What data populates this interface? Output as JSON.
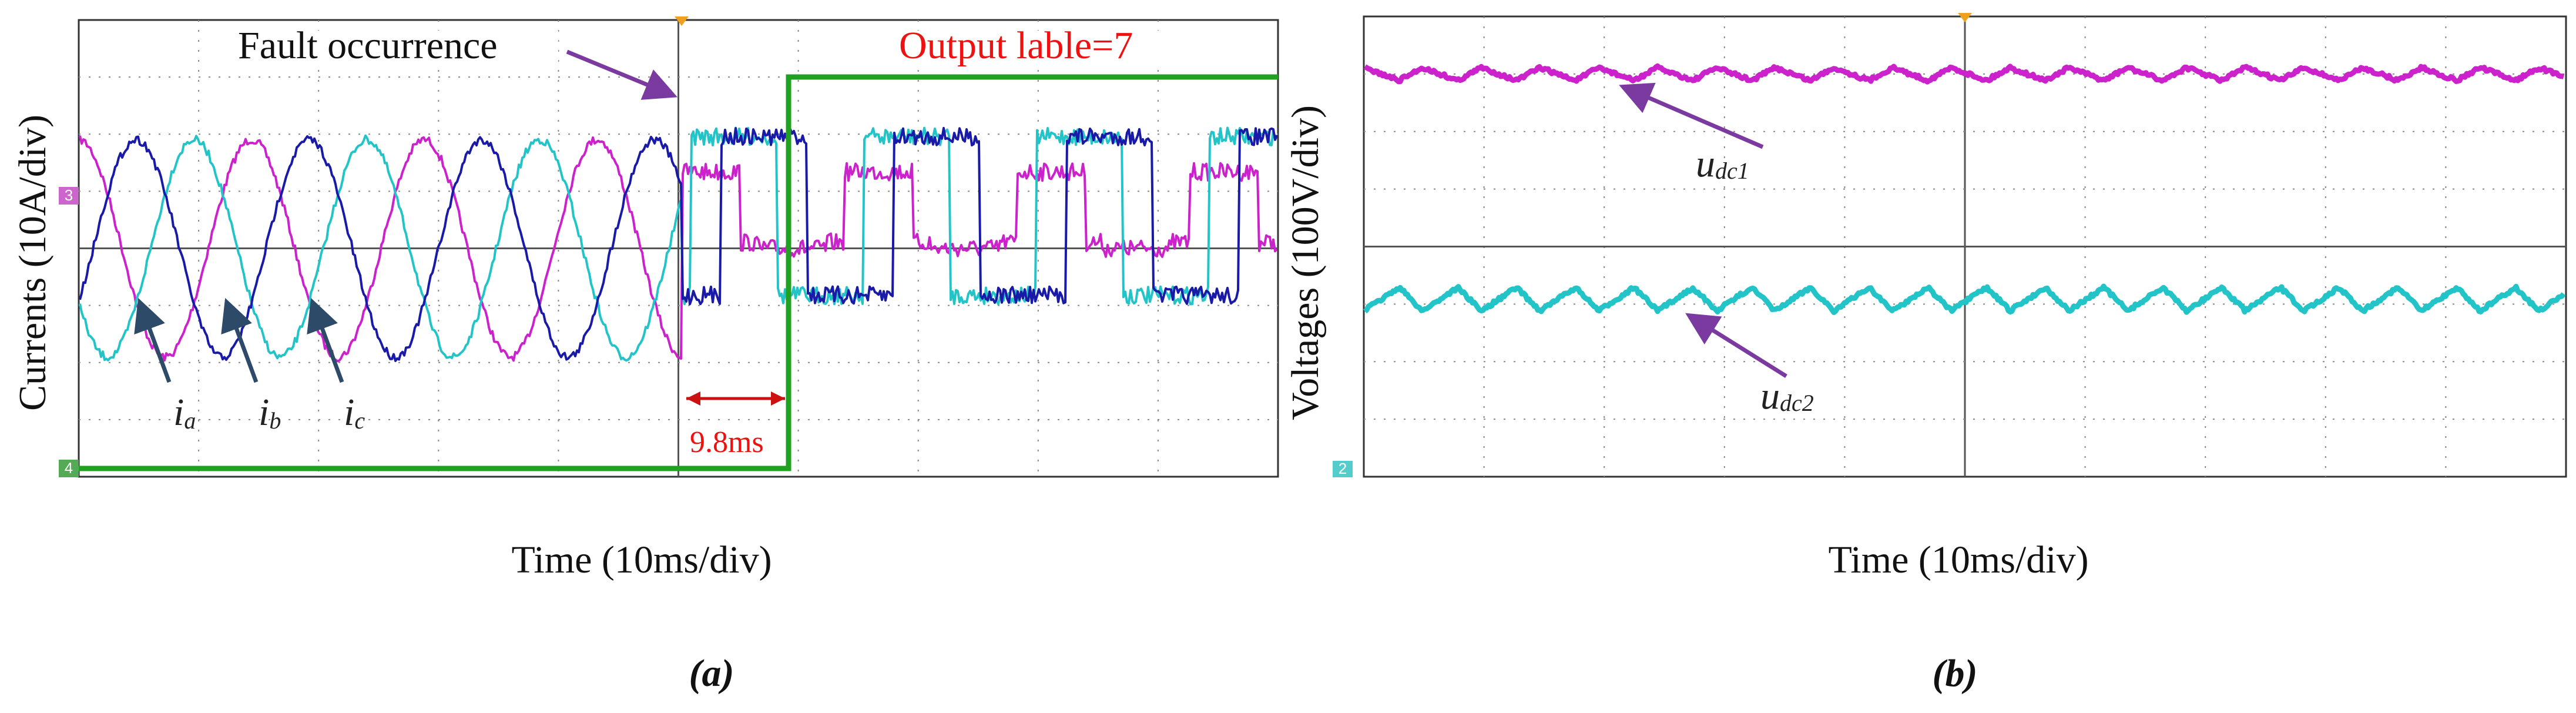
{
  "panels": [
    {
      "y_label": "Currents (10A/div)",
      "x_label": "Time (10ms/div)",
      "caption": "(a)",
      "annotations": {
        "fault": "Fault occurrence",
        "output": "Output lable=7",
        "delay": "9.8ms"
      },
      "phases": [
        {
          "symbol": "i",
          "subscript": "a"
        },
        {
          "symbol": "i",
          "subscript": "b"
        },
        {
          "symbol": "i",
          "subscript": "c"
        }
      ],
      "channel_tags": [
        "3",
        "4"
      ]
    },
    {
      "y_label": "Voltages (100V/div)",
      "x_label": "Time (10ms/div)",
      "caption": "(b)",
      "signals": [
        {
          "symbol": "u",
          "subscript": "dc1"
        },
        {
          "symbol": "u",
          "subscript": "dc2"
        }
      ],
      "channel_tags": [
        "2"
      ]
    }
  ]
}
